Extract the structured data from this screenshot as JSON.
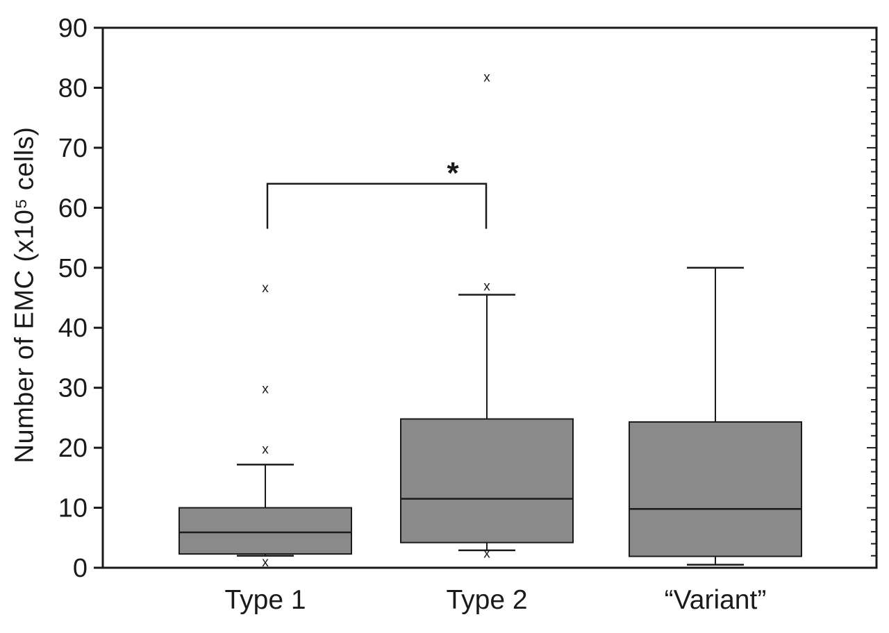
{
  "chart_data": {
    "type": "box",
    "title": "",
    "xlabel": "",
    "ylabel": "Number of EMC (x10⁵ cells)",
    "ylim": [
      0,
      90
    ],
    "yticks": [
      0,
      10,
      20,
      30,
      40,
      50,
      60,
      70,
      80,
      90
    ],
    "minor_tick_step": 2,
    "grid": false,
    "legend": "none",
    "categories": [
      "Type 1",
      "Type 2",
      "“Variant”"
    ],
    "series": [
      {
        "name": "Type 1",
        "whisker_low": 2.0,
        "q1": 2.3,
        "median": 5.9,
        "q3": 10.0,
        "whisker_high": 17.2,
        "outliers": [
          0.9,
          19.7,
          29.8,
          46.6
        ]
      },
      {
        "name": "Type 2",
        "whisker_low": 2.9,
        "q1": 4.2,
        "median": 11.5,
        "q3": 24.8,
        "whisker_high": 45.5,
        "outliers": [
          2.4,
          46.9,
          81.7
        ]
      },
      {
        "name": "“Variant”",
        "whisker_low": 0.5,
        "q1": 1.9,
        "median": 9.8,
        "q3": 24.3,
        "whisker_high": 50.0,
        "outliers": []
      }
    ],
    "annotation": {
      "type": "significance-bracket",
      "label": "*",
      "from_category": "Type 1",
      "to_category": "Type 2",
      "bracket_top_value": 64,
      "leg_bottom_value": 56.5
    },
    "colors": {
      "box_fill": "#8a8a8a",
      "box_stroke": "#1a1a1a",
      "outlier": "#3a3a3a",
      "background": "#ffffff"
    }
  }
}
